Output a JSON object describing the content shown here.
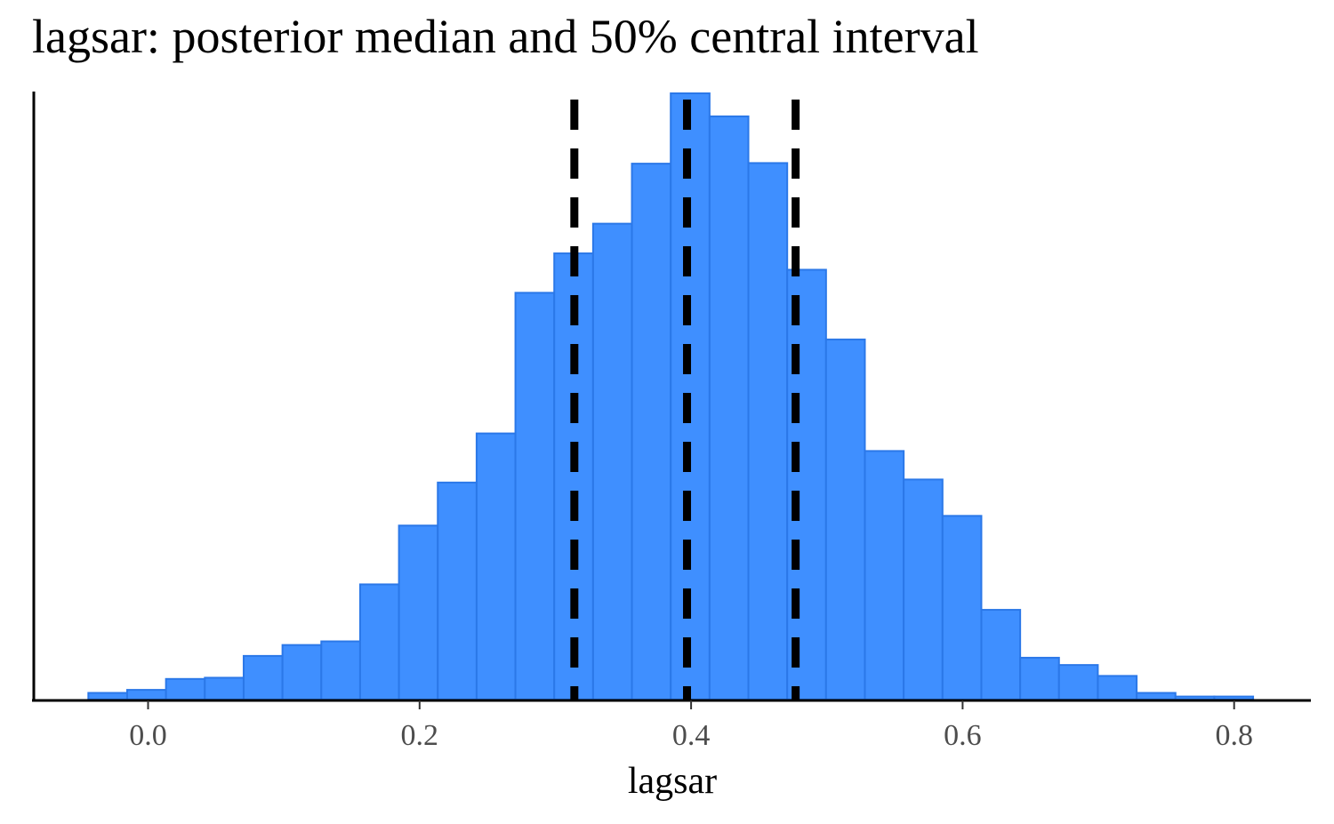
{
  "chart_data": {
    "type": "bar",
    "title": "lagsar: posterior median and 50% central interval",
    "xlabel": "lagsar",
    "ylabel": "",
    "x_ticks": [
      "0.0",
      "0.2",
      "0.4",
      "0.6",
      "0.8"
    ],
    "x_tick_values": [
      0.0,
      0.2,
      0.4,
      0.6,
      0.8
    ],
    "xlim": [
      -0.085,
      0.85
    ],
    "bin_width": 0.0286,
    "bin_starts": [
      -0.044,
      -0.0154,
      0.0132,
      0.0418,
      0.0704,
      0.099,
      0.1276,
      0.1562,
      0.1848,
      0.2134,
      0.242,
      0.2706,
      0.2992,
      0.3278,
      0.3564,
      0.385,
      0.4136,
      0.4422,
      0.4708,
      0.4994,
      0.528,
      0.5566,
      0.5852,
      0.6138,
      0.6424,
      0.671,
      0.6996,
      0.7282,
      0.7568,
      0.7854
    ],
    "values": [
      1.1,
      1.6,
      3.4,
      3.6,
      7.2,
      9.0,
      9.6,
      19.0,
      28.7,
      35.8,
      43.9,
      67.1,
      73.6,
      78.5,
      88.4,
      100,
      96.2,
      88.5,
      70.9,
      59.4,
      41.0,
      36.3,
      30.3,
      14.8,
      6.9,
      5.7,
      3.9,
      1.1,
      0.5,
      0.5
    ],
    "ylim": [
      0,
      100
    ],
    "y_axis_labels": false,
    "grid": false,
    "bar_fill": "#3f8fff",
    "bar_edge": "#2b78e8",
    "median": 0.397,
    "interval_50": [
      0.314,
      0.477
    ],
    "line_color": "#000000",
    "line_style": "dashed"
  }
}
